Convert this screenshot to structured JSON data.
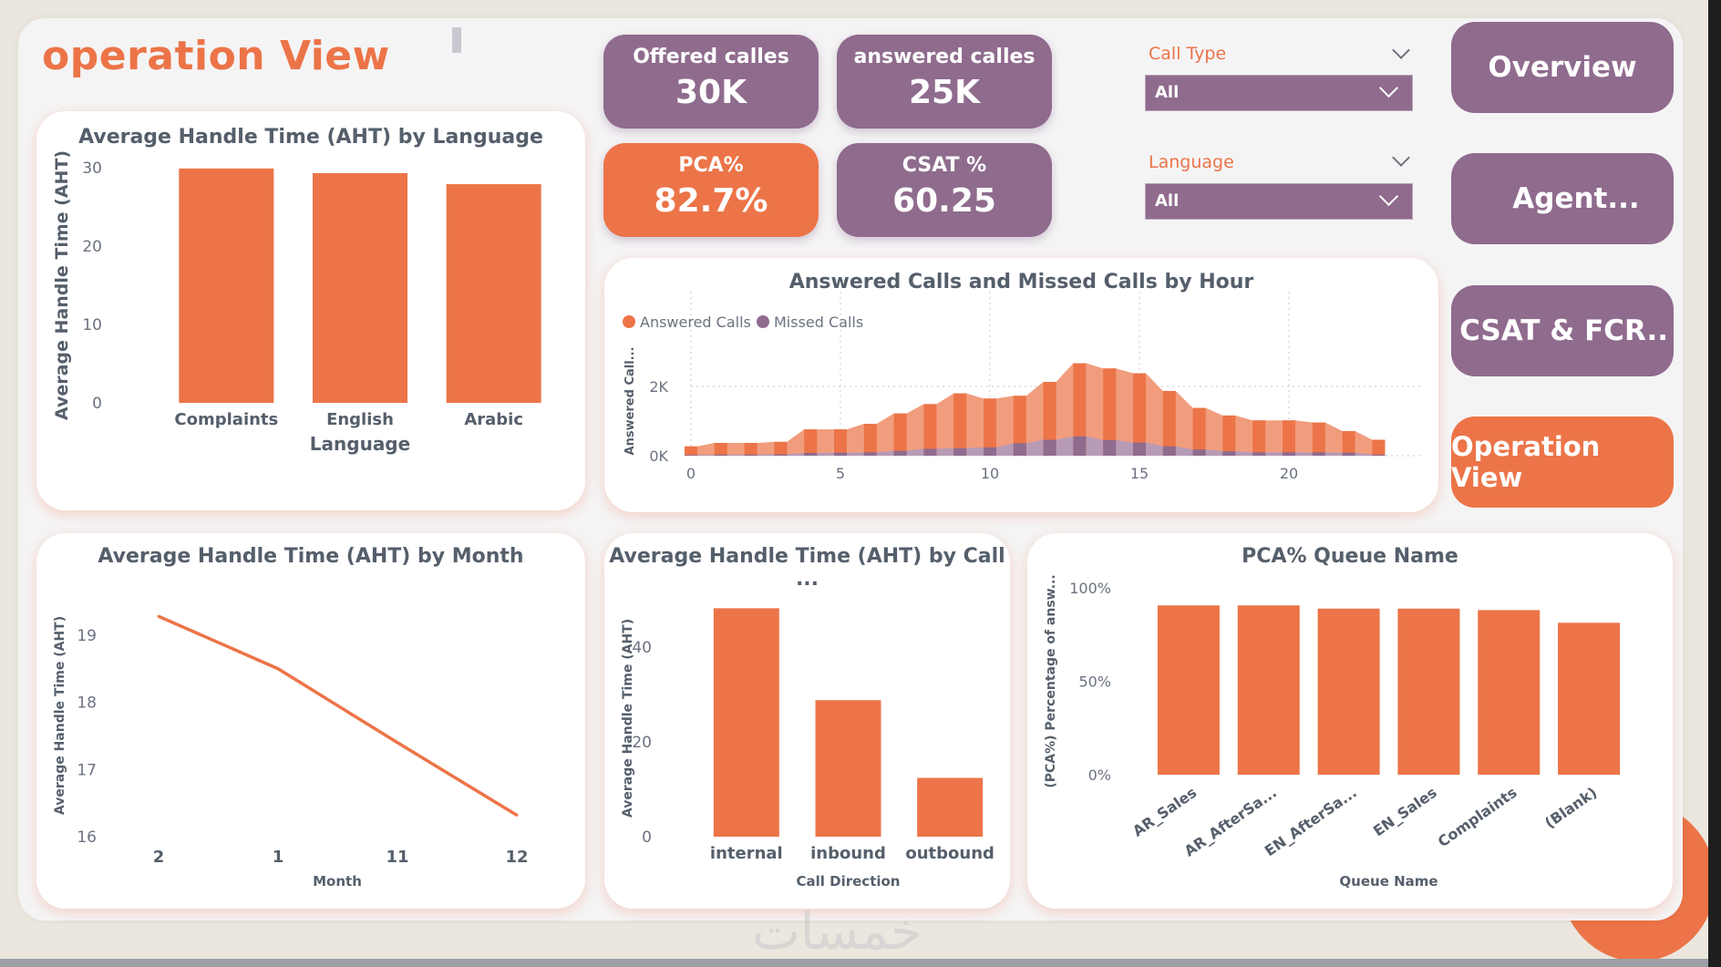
{
  "page": {
    "title": "operation View",
    "watermark": "خمسات",
    "colors": {
      "accent_orange": "#ec7448",
      "accent_purple": "#8f6b8e",
      "answered_area": "#f19d7d",
      "missed_area": "#b79ab5",
      "text_gray": "#555f6b"
    }
  },
  "kpis": [
    {
      "label": "Offered calles",
      "value": "30K",
      "color": "purple"
    },
    {
      "label": "answered calles",
      "value": "25K",
      "color": "purple"
    },
    {
      "label": "PCA%",
      "value": "82.7%",
      "color": "orange"
    },
    {
      "label": "CSAT %",
      "value": "60.25",
      "color": "purple"
    }
  ],
  "slicers": [
    {
      "label": "Call Type",
      "value": "All"
    },
    {
      "label": "Language",
      "value": "All"
    }
  ],
  "nav": [
    {
      "label": "Overview",
      "active": false
    },
    {
      "label": "Agent...",
      "active": false
    },
    {
      "label": "CSAT & FCR..",
      "active": false
    },
    {
      "label": "Operation View",
      "active": true
    }
  ],
  "chart_data": [
    {
      "id": "aht_language",
      "type": "bar",
      "title": "Average Handle Time (AHT) by Language",
      "xlabel": "Language",
      "ylabel": "Average Handle Time (AHT)",
      "categories": [
        "Complaints",
        "English",
        "Arabic"
      ],
      "values": [
        29.9,
        29.3,
        27.9
      ],
      "ylim": [
        0,
        30
      ],
      "yticks": [
        0,
        10,
        20,
        30
      ],
      "grid": false
    },
    {
      "id": "calls_by_hour",
      "type": "area",
      "title": "Answered Calls and Missed Calls by Hour",
      "xlabel": "",
      "ylabel": "Answered Call...",
      "legend": "top-left",
      "x": [
        0,
        1,
        2,
        3,
        4,
        5,
        6,
        7,
        8,
        9,
        10,
        11,
        12,
        13,
        14,
        15,
        16,
        17,
        18,
        19,
        20,
        21,
        22,
        23
      ],
      "xticks": [
        0,
        5,
        10,
        15,
        20
      ],
      "yticks": [
        {
          "v": 0,
          "label": "0K"
        },
        {
          "v": 2000,
          "label": "2K"
        }
      ],
      "ylim": [
        0,
        2800
      ],
      "grid": true,
      "series": [
        {
          "name": "Answered Calls",
          "values": [
            270,
            370,
            370,
            400,
            760,
            760,
            920,
            1220,
            1490,
            1800,
            1650,
            1730,
            2130,
            2670,
            2520,
            2380,
            1870,
            1380,
            1160,
            1020,
            1020,
            960,
            710,
            460
          ]
        },
        {
          "name": "Missed Calls",
          "values": [
            20,
            30,
            30,
            40,
            80,
            90,
            100,
            140,
            200,
            220,
            240,
            360,
            460,
            560,
            450,
            380,
            270,
            180,
            130,
            100,
            100,
            100,
            90,
            30
          ]
        }
      ]
    },
    {
      "id": "aht_month",
      "type": "line",
      "title": "Average Handle Time (AHT) by Month",
      "xlabel": "Month",
      "ylabel": "Average Handle Time (AHT)",
      "categories": [
        "2",
        "1",
        "11",
        "12"
      ],
      "values": [
        19.28,
        18.5,
        17.4,
        16.32
      ],
      "ylim": [
        16,
        19.5
      ],
      "yticks": [
        16,
        17,
        18,
        19
      ],
      "grid": false
    },
    {
      "id": "aht_call_direction",
      "type": "bar",
      "title": "Average Handle Time (AHT) by Call ...",
      "xlabel": "Call Direction",
      "ylabel": "Average Handle Time (AHT)",
      "categories": [
        "internal",
        "inbound",
        "outbound"
      ],
      "values": [
        48.2,
        28.8,
        12.4
      ],
      "ylim": [
        0,
        50
      ],
      "yticks": [
        0,
        20,
        40
      ],
      "grid": false
    },
    {
      "id": "pca_queue",
      "type": "bar",
      "title": "PCA% Queue Name",
      "xlabel": "Queue Name",
      "ylabel": "(PCA%) Percentage of answ...",
      "categories": [
        "AR_Sales",
        "AR_AfterSa...",
        "EN_AfterSa...",
        "EN_Sales",
        "Complaints",
        "(Blank)"
      ],
      "values": [
        90.6,
        90.6,
        88.9,
        88.9,
        88.1,
        81.3
      ],
      "ylim": [
        0,
        100
      ],
      "yticks": [
        {
          "v": 0,
          "label": "0%"
        },
        {
          "v": 50,
          "label": "50%"
        },
        {
          "v": 100,
          "label": "100%"
        }
      ],
      "grid": false
    }
  ]
}
